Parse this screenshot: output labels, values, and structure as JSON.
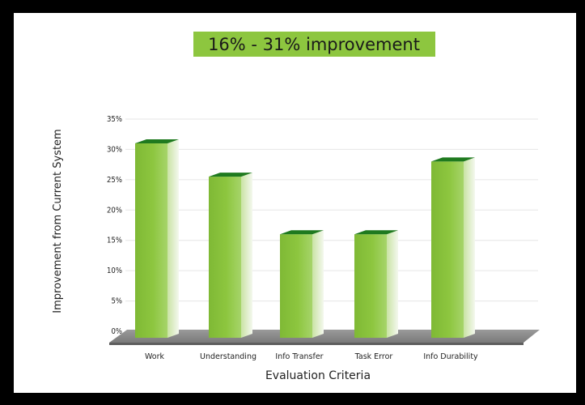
{
  "chart_data": {
    "type": "bar",
    "title": "16% - 31% improvement",
    "xlabel": "Evaluation Criteria",
    "ylabel": "Improvement from Current System",
    "categories": [
      "Work",
      "Understanding",
      "Info Transfer",
      "Task Error",
      "Info Durability"
    ],
    "values": [
      31,
      25.5,
      16,
      16,
      28
    ],
    "ylim": [
      0,
      35
    ],
    "yticks": [
      "0%",
      "5%",
      "10%",
      "15%",
      "20%",
      "25%",
      "30%",
      "35%"
    ],
    "grid": true,
    "style": "3d",
    "legend": "none",
    "colors": {
      "bar_front": "#8dc63f",
      "bar_top": "#1f7a1f",
      "title_box": "#8dc63f",
      "floor": "#7a7a7a",
      "gridline": "#e6e6e6"
    }
  }
}
